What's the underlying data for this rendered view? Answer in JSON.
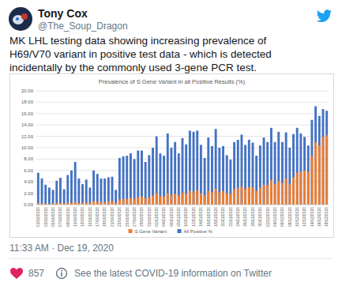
{
  "tweet": {
    "name": "Tony Cox",
    "handle": "@The_Soup_Dragon",
    "text_lines": [
      "MK LHL testing data showing increasing prevalence of",
      "H69/V70 variant in positive test data - which is detected",
      "incidentally by the commonly used 3-gene PCR test."
    ],
    "timestamp": "11:33 AM · Dec 19, 2020",
    "likes": 857,
    "info": "See the latest COVID-19 information on Twitter"
  },
  "chart_data": {
    "type": "bar",
    "title": "Prevalence of S Gene Variant in all Positive Results (%)",
    "categories": [
      "01/10/2020",
      null,
      "03/10/2020",
      null,
      "05/10/2020",
      null,
      "07/10/2020",
      null,
      "09/10/2020",
      null,
      "11/10/2020",
      null,
      "13/10/2020",
      null,
      "15/10/2020",
      null,
      "17/10/2020",
      null,
      "19/10/2020",
      null,
      "21/10/2020",
      null,
      "23/10/2020",
      null,
      "25/10/2020",
      null,
      "27/10/2020",
      null,
      "29/10/2020",
      null,
      "31/10/2020",
      null,
      "02/11/2020",
      null,
      "04/11/2020",
      null,
      "06/11/2020",
      null,
      "08/11/2020",
      null,
      "10/11/2020",
      null,
      "12/11/2020",
      null,
      "14/11/2020",
      null,
      "16/11/2020",
      null,
      "18/11/2020",
      null,
      "20/11/2020",
      null,
      "22/11/2020",
      null,
      "24/11/2020",
      null,
      "26/11/2020",
      null,
      "28/11/2020",
      null,
      "30/11/2020",
      null,
      "02/12/2020",
      null,
      "04/12/2020",
      null,
      "06/12/2020",
      null,
      "08/12/2020",
      null,
      "10/12/2020",
      null,
      "12/12/2020",
      null,
      "14/12/2020",
      null,
      "16/12/2020",
      null,
      "18/12/2020"
    ],
    "series": [
      {
        "name": "S Gene Variant",
        "color": "#ed7d31",
        "values": [
          0.3,
          0.2,
          0.2,
          0.1,
          0.2,
          0.3,
          0.3,
          0.2,
          0.4,
          0.3,
          0.5,
          0.3,
          0.3,
          0.4,
          0.3,
          0.6,
          0.5,
          0.5,
          0.4,
          0.6,
          0.6,
          0.3,
          0.9,
          1.0,
          1.0,
          1.2,
          1.0,
          1.3,
          1.4,
          1.1,
          1.3,
          1.6,
          2.0,
          1.5,
          1.4,
          2.0,
          1.7,
          1.9,
          1.6,
          2.1,
          1.9,
          2.4,
          2.3,
          2.5,
          2.0,
          1.6,
          2.4,
          2.2,
          2.8,
          2.2,
          2.4,
          2.0,
          1.9,
          2.7,
          2.9,
          3.2,
          2.8,
          3.1,
          3.0,
          2.4,
          3.0,
          3.5,
          3.4,
          4.3,
          3.6,
          4.2,
          3.8,
          4.6,
          3.6,
          4.8,
          5.6,
          5.8,
          6.0,
          5.8,
          8.5,
          11.0,
          10.4,
          11.9,
          12.2
        ]
      },
      {
        "name": "All Positive %",
        "color": "#4472c4",
        "values": [
          5.6,
          4.6,
          3.5,
          3.0,
          2.6,
          4.2,
          4.7,
          2.7,
          5.2,
          6.0,
          7.5,
          4.6,
          3.6,
          4.4,
          3.0,
          6.0,
          5.4,
          4.6,
          4.6,
          4.8,
          4.9,
          2.6,
          8.2,
          8.5,
          8.6,
          9.0,
          8.0,
          9.5,
          9.5,
          7.5,
          8.7,
          10.0,
          12.0,
          9.0,
          8.6,
          12.5,
          10.0,
          11.0,
          9.0,
          11.7,
          10.6,
          13.0,
          12.8,
          13.0,
          10.5,
          8.2,
          11.8,
          10.3,
          13.3,
          10.0,
          10.3,
          8.7,
          7.9,
          11.0,
          11.4,
          12.3,
          10.5,
          11.4,
          10.9,
          8.6,
          10.4,
          11.8,
          11.0,
          13.5,
          11.0,
          12.8,
          11.0,
          12.7,
          10.0,
          12.4,
          13.5,
          12.5,
          11.9,
          10.4,
          14.9,
          17.3,
          15.6,
          16.8,
          16.5
        ]
      }
    ],
    "ylim": [
      0,
      20
    ],
    "yticks": [
      {
        "value": 0,
        "label": "0.00"
      },
      {
        "value": 2,
        "label": "2.00"
      },
      {
        "value": 4,
        "label": "4.00"
      },
      {
        "value": 6,
        "label": "6.00"
      },
      {
        "value": 8,
        "label": "8.00"
      },
      {
        "value": 10,
        "label": "10.00"
      },
      {
        "value": 12,
        "label": "12.00"
      },
      {
        "value": 14,
        "label": "14.00"
      },
      {
        "value": 16,
        "label": "16.00"
      },
      {
        "value": 18,
        "label": "18.00"
      },
      {
        "value": 20,
        "label": "20.00"
      }
    ],
    "grid": true,
    "legend": "bottom"
  }
}
